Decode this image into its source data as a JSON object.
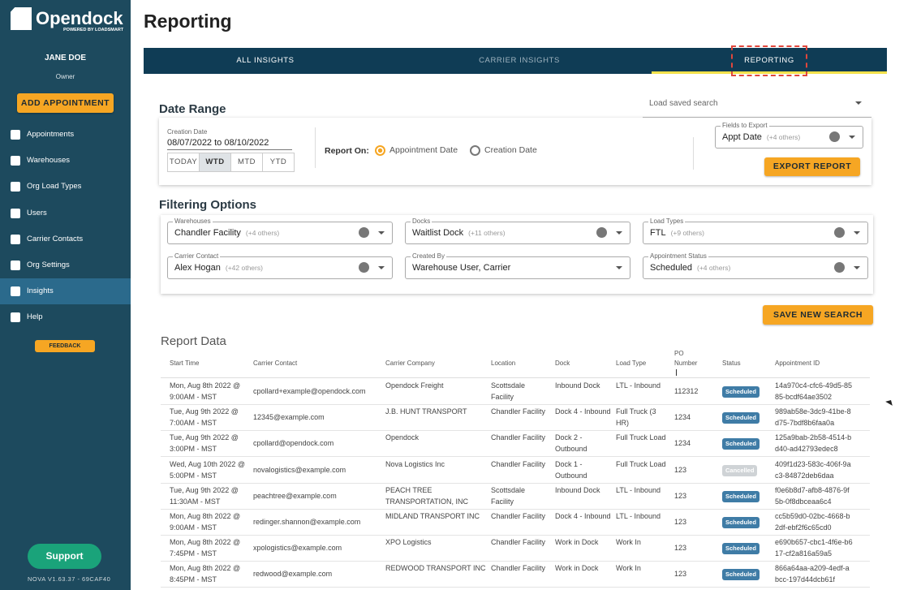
{
  "sidebar": {
    "logo": "Opendock",
    "logo_sub": "POWERED BY LOADSMART",
    "user": "JANE DOE",
    "role": "Owner",
    "add_button": "ADD APPOINTMENT",
    "nav": [
      "Appointments",
      "Warehouses",
      "Org Load Types",
      "Users",
      "Carrier Contacts",
      "Org Settings",
      "Insights",
      "Help"
    ],
    "feedback": "FEEDBACK",
    "support": "Support",
    "version": "NOVA V1.63.37 - 69CAF40"
  },
  "header": {
    "title": "Reporting",
    "tabs": [
      "ALL INSIGHTS",
      "CARRIER INSIGHTS",
      "REPORTING"
    ]
  },
  "date_range": {
    "title": "Date Range",
    "saved_search": "Load saved search",
    "creation_label": "Creation Date",
    "range": "08/07/2022 to 08/10/2022",
    "buttons": [
      "TODAY",
      "WTD",
      "MTD",
      "YTD"
    ],
    "report_on": "Report On:",
    "options": [
      "Appointment Date",
      "Creation Date"
    ],
    "fields_label": "Fields to Export",
    "fields_value": "Appt Date",
    "fields_others": "(+4 others)",
    "export": "EXPORT REPORT"
  },
  "filtering": {
    "title": "Filtering Options",
    "filters": [
      {
        "label": "Warehouses",
        "value": "Chandler Facility",
        "others": "(+4 others)"
      },
      {
        "label": "Docks",
        "value": "Waitlist Dock",
        "others": "(+11 others)"
      },
      {
        "label": "Load Types",
        "value": "FTL",
        "others": "(+9 others)"
      },
      {
        "label": "Carrier Contact",
        "value": "Alex Hogan",
        "others": "(+42 others)"
      },
      {
        "label": "Created By",
        "value": "Warehouse User, Carrier"
      },
      {
        "label": "Appointment Status",
        "value": "Scheduled",
        "others": "(+4 others)"
      }
    ],
    "save": "SAVE NEW SEARCH"
  },
  "table": {
    "title": "Report Data",
    "headers": [
      "Start Time",
      "Carrier Contact",
      "Carrier Company",
      "Location",
      "Dock",
      "Load Type",
      "PO Number",
      "Status",
      "Appointment ID"
    ],
    "rows": [
      [
        "Mon, Aug 8th 2022 @ 9:00AM - MST",
        "cpollard+example@opendock.com",
        "Opendock Freight",
        "Scottsdale Facility",
        "Inbound Dock",
        "LTL - Inbound",
        "112312",
        "Scheduled",
        "14a970c4-cfc6-49d5-8585-bcdf64ae3502"
      ],
      [
        "Tue, Aug 9th 2022 @ 7:00AM - MST",
        "12345@example.com",
        "J.B. HUNT TRANSPORT",
        "Chandler Facility",
        "Dock 4 - Inbound",
        "Full Truck (3 HR)",
        "1234",
        "Scheduled",
        "989ab58e-3dc9-41be-8d75-7bdf8b6faa0a"
      ],
      [
        "Tue, Aug 9th 2022 @ 3:00PM - MST",
        "cpollard@opendock.com",
        "Opendock",
        "Chandler Facility",
        "Dock 2 - Outbound",
        "Full Truck Load",
        "1234",
        "Scheduled",
        "125a9bab-2b58-4514-bd40-ad42793edec8"
      ],
      [
        "Wed, Aug 10th 2022 @ 5:00PM - MST",
        "novalogistics@example.com",
        "Nova Logistics Inc",
        "Chandler Facility",
        "Dock 1 - Outbound",
        "Full Truck Load",
        "123",
        "Cancelled",
        "409f1d23-583c-406f-9ac3-84872deb6daa"
      ],
      [
        "Tue, Aug 9th 2022 @ 11:30AM - MST",
        "peachtree@example.com",
        "PEACH TREE TRANSPORTATION, INC",
        "Scottsdale Facility",
        "Inbound Dock",
        "LTL - Inbound",
        "123",
        "Scheduled",
        "f0e6b8d7-afb8-4876-9f5b-0f8dbceaa6c4"
      ],
      [
        "Mon, Aug 8th 2022 @ 9:00AM - MST",
        "redinger.shannon@example.com",
        "MIDLAND TRANSPORT INC",
        "Chandler Facility",
        "Dock 4 - Inbound",
        "LTL - Inbound",
        "123",
        "Scheduled",
        "cc5b59d0-02bc-4668-b2df-ebf2f6c65cd0"
      ],
      [
        "Mon, Aug 8th 2022 @ 7:45PM - MST",
        "xpologistics@example.com",
        "XPO Logistics",
        "Chandler Facility",
        "Work in Dock",
        "Work In",
        "123",
        "Scheduled",
        "e690b657-cbc1-4f6e-b617-cf2a816a59a5"
      ],
      [
        "Mon, Aug 8th 2022 @ 8:45PM - MST",
        "redwood@example.com",
        "REDWOOD TRANSPORT INC",
        "Chandler Facility",
        "Work in Dock",
        "Work In",
        "123",
        "Scheduled",
        "866a64aa-a209-4edf-abcc-197d44dcb61f"
      ]
    ],
    "status_colors": [
      "#3f7ca6",
      "#3f7ca6",
      "#3f7ca6",
      "#cfd3d6",
      "#3f7ca6",
      "#3f7ca6",
      "#3f7ca6",
      "#3f7ca6"
    ]
  }
}
